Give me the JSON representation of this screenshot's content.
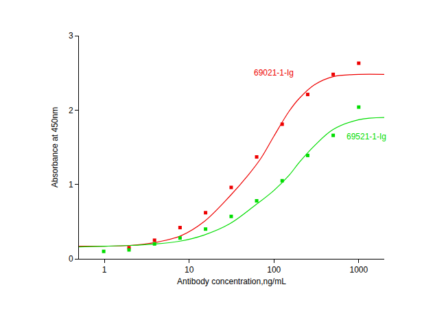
{
  "chart_data": {
    "type": "scatter",
    "x_label": "Antibody concentration,ng/mL",
    "y_label": "Absorbance at 450nm",
    "log": "x",
    "grid": false,
    "marker": "square",
    "line_style": "solid",
    "xlim": [
      0.5,
      2000
    ],
    "xticks": [
      1,
      10,
      100,
      1000
    ],
    "ylim": [
      0,
      3
    ],
    "yticks": [
      0,
      1,
      2,
      3
    ],
    "series": [
      {
        "name": "69021-1-Ig",
        "color": "#ee0000",
        "x": [
          1.95,
          3.9,
          7.8,
          15.6,
          31.3,
          62.5,
          125,
          250,
          500,
          1000
        ],
        "values": [
          0.15,
          0.25,
          0.42,
          0.62,
          0.96,
          1.37,
          1.81,
          2.21,
          2.48,
          2.63
        ],
        "fit_x": [
          0.5,
          1,
          2,
          4,
          8,
          15,
          30,
          50,
          70,
          100,
          150,
          200,
          300,
          500,
          1000,
          2000
        ],
        "fit_values": [
          0.17,
          0.17,
          0.18,
          0.22,
          0.31,
          0.5,
          0.84,
          1.13,
          1.35,
          1.65,
          1.98,
          2.16,
          2.34,
          2.45,
          2.48,
          2.48
        ],
        "label_x": 100,
        "label_y": 2.5
      },
      {
        "name": "69521-1-Ig",
        "color": "#00dd00",
        "x": [
          0.98,
          1.95,
          3.9,
          7.8,
          15.6,
          31.3,
          62.5,
          125,
          250,
          500,
          1000
        ],
        "values": [
          0.1,
          0.12,
          0.2,
          0.28,
          0.4,
          0.57,
          0.78,
          1.05,
          1.39,
          1.66,
          2.04
        ],
        "fit_x": [
          0.5,
          1,
          2,
          4,
          8,
          15,
          30,
          60,
          100,
          150,
          200,
          300,
          500,
          1000,
          2000
        ],
        "fit_values": [
          0.16,
          0.17,
          0.18,
          0.2,
          0.24,
          0.32,
          0.47,
          0.72,
          0.92,
          1.12,
          1.3,
          1.52,
          1.74,
          1.87,
          1.9
        ],
        "label_x": 1230,
        "label_y": 1.64
      }
    ]
  }
}
